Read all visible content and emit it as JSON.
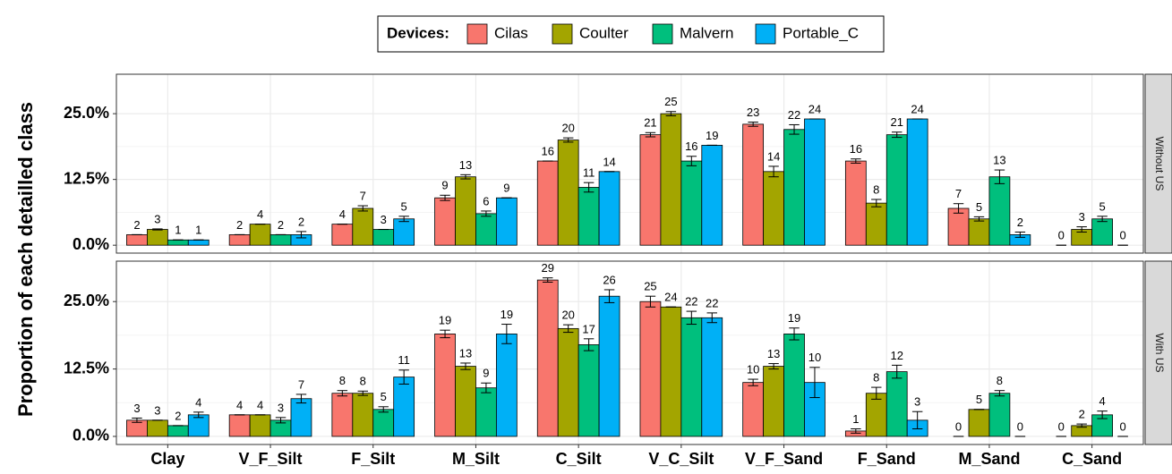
{
  "chart_data": {
    "type": "bar",
    "y_label": "Proportion of each detailled class",
    "legend_title": "Devices:",
    "legend_position": "top",
    "grid": true,
    "categories": [
      "Clay",
      "V_F_Silt",
      "F_Silt",
      "M_Silt",
      "C_Silt",
      "V_C_Silt",
      "V_F_Sand",
      "F_Sand",
      "M_Sand",
      "C_Sand"
    ],
    "ylim": [
      -1.5,
      32.5
    ],
    "yticks": [
      {
        "value": 0,
        "label": "0.0%"
      },
      {
        "value": 12.5,
        "label": "12.5%"
      },
      {
        "value": 25,
        "label": "25.0%"
      }
    ],
    "series": [
      {
        "name": "Cilas",
        "color": "#f8766d"
      },
      {
        "name": "Coulter",
        "color": "#a3a500"
      },
      {
        "name": "Malvern",
        "color": "#00bf7d"
      },
      {
        "name": "Portable_C",
        "color": "#00b0f6"
      }
    ],
    "panels": [
      {
        "strip": "Without US",
        "series": [
          {
            "values": [
              2,
              2,
              4,
              9,
              16,
              21,
              23,
              16,
              7,
              0
            ],
            "errors": [
              0,
              0,
              0,
              0.5,
              0,
              0.4,
              0.4,
              0.4,
              0.9,
              0
            ]
          },
          {
            "values": [
              3,
              4,
              7,
              13,
              20,
              25,
              14,
              8,
              5,
              3
            ],
            "errors": [
              0.1,
              0,
              0.5,
              0.4,
              0.4,
              0.4,
              1,
              0.7,
              0.4,
              0.5
            ]
          },
          {
            "values": [
              1,
              2,
              3,
              6,
              11,
              16,
              22,
              21,
              13,
              5
            ],
            "errors": [
              0,
              0,
              0,
              0.5,
              0.9,
              0.9,
              0.9,
              0.5,
              1.3,
              0.5
            ]
          },
          {
            "values": [
              1,
              2,
              5,
              9,
              14,
              19,
              24,
              24,
              2,
              0
            ],
            "errors": [
              0,
              0.6,
              0.5,
              0,
              0,
              0,
              0,
              0,
              0.5,
              0
            ]
          }
        ]
      },
      {
        "strip": "With US",
        "series": [
          {
            "values": [
              3,
              4,
              8,
              19,
              29,
              25,
              10,
              1,
              0,
              0
            ],
            "errors": [
              0.4,
              0,
              0.5,
              0.7,
              0.4,
              1,
              0.6,
              0.4,
              0,
              0
            ]
          },
          {
            "values": [
              3,
              4,
              8,
              13,
              20,
              24,
              13,
              8,
              5,
              2
            ],
            "errors": [
              0,
              0,
              0.4,
              0.6,
              0.7,
              0,
              0.5,
              1.1,
              0,
              0.3
            ]
          },
          {
            "values": [
              2,
              3,
              5,
              9,
              17,
              22,
              19,
              12,
              8,
              4
            ],
            "errors": [
              0,
              0.5,
              0.5,
              0.9,
              1.1,
              1.2,
              1.1,
              1.2,
              0.5,
              0.7
            ]
          },
          {
            "values": [
              4,
              7,
              11,
              19,
              26,
              22,
              10,
              3,
              0,
              0
            ],
            "errors": [
              0.5,
              0.8,
              1.3,
              1.8,
              1.2,
              0.9,
              2.8,
              1.6,
              0,
              0
            ]
          }
        ]
      }
    ]
  }
}
